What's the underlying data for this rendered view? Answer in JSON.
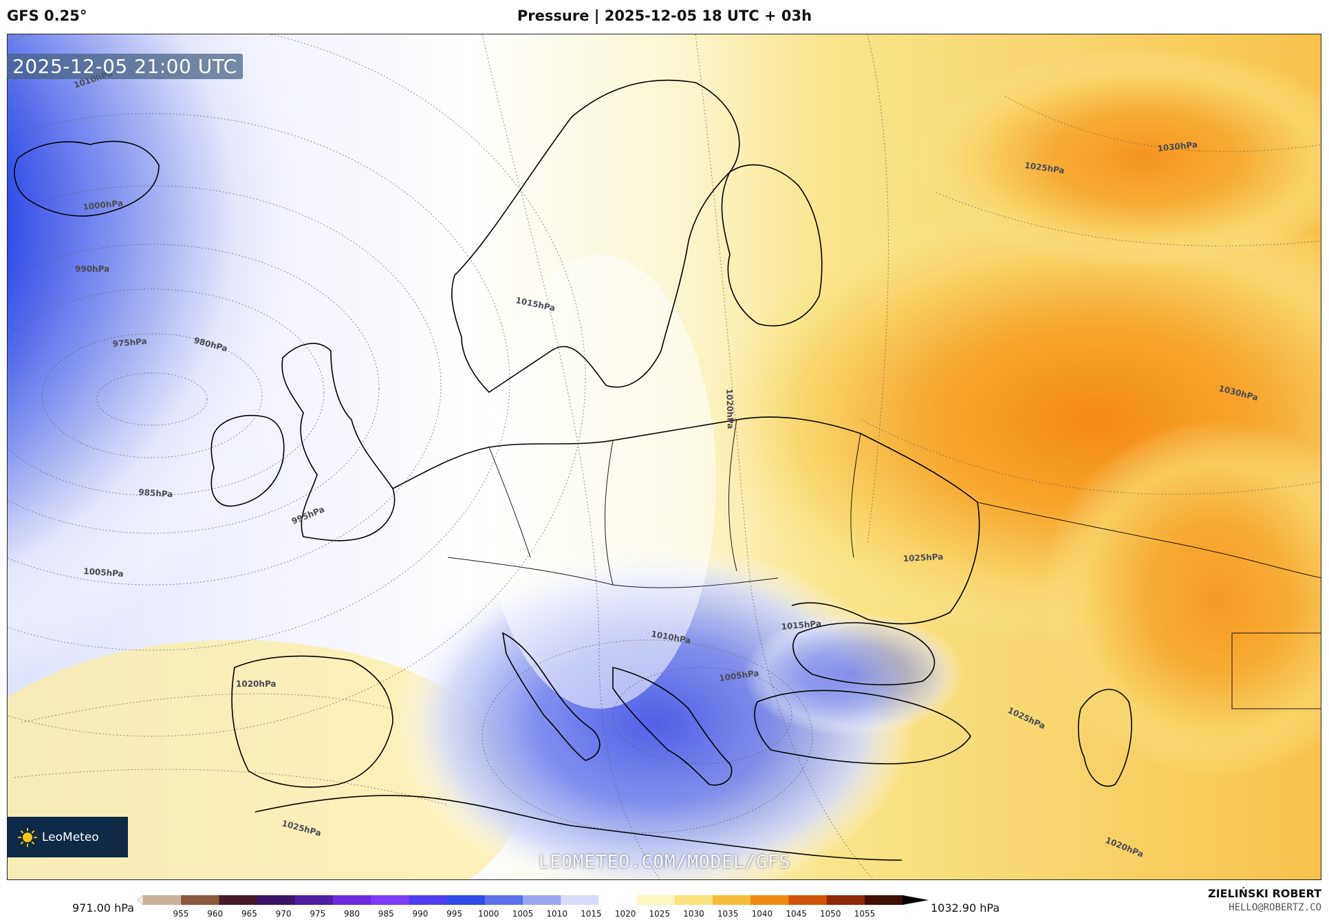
{
  "header": {
    "model": "GFS 0.25°",
    "title": "Pressure | 2025-12-05 18 UTC + 03h"
  },
  "map": {
    "valid_time": "2025-12-05 21:00 UTC",
    "watermark": "LEOMETEO.COM/MODEL/GFS",
    "logo": {
      "name": "LeoMeteo",
      "icon": "sun-icon"
    },
    "isobar_labels": [
      "1010hPa",
      "1000hPa",
      "990hPa",
      "975hPa",
      "980hPa",
      "985hPa",
      "995hPa",
      "1005hPa",
      "1015hPa",
      "1020hPa",
      "1020hPa",
      "1025hPa",
      "1030hPa",
      "1030hPa",
      "1025hPa",
      "1015hPa",
      "1010hPa",
      "1005hPa",
      "1025hPa",
      "1025hPa",
      "1020hPa"
    ]
  },
  "colorbar": {
    "min_label": "971.00 hPa",
    "max_label": "1032.90 hPa",
    "ticks": [
      "955",
      "960",
      "965",
      "970",
      "975",
      "980",
      "985",
      "990",
      "995",
      "1000",
      "1005",
      "1010",
      "1015",
      "1020",
      "1025",
      "1030",
      "1035",
      "1040",
      "1045",
      "1050",
      "1055"
    ],
    "colors": [
      "#f6f1e4",
      "#c9b39a",
      "#8a5a3c",
      "#4a1a2a",
      "#3b1668",
      "#4e1fa3",
      "#6a2be0",
      "#7b3cf5",
      "#4f3ef0",
      "#2f4ce8",
      "#5d70ec",
      "#9aa6f2",
      "#d7dcf8",
      "#ffffff",
      "#fcf6c0",
      "#f9e37e",
      "#f8bb3a",
      "#f08a12",
      "#d2560a",
      "#8f2a08",
      "#3f1006",
      "#000000"
    ]
  },
  "author": {
    "name": "ZIELIŃSKI ROBERT",
    "email": "HELLO@ROBERTZ.CO"
  }
}
